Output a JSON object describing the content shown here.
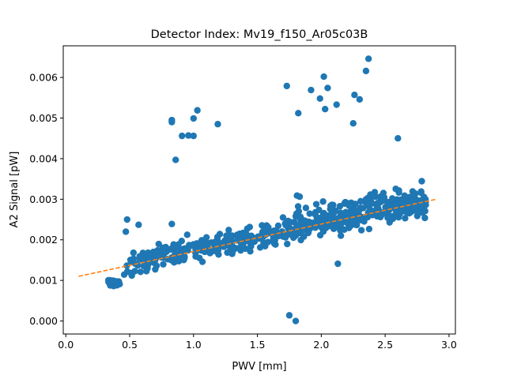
{
  "chart_data": {
    "type": "scatter",
    "title": "Detector Index: Mv19_f150_Ar05c03B",
    "xlabel": "PWV [mm]",
    "ylabel": "A2 Signal [pW]",
    "xlim": [
      -0.02,
      3.05
    ],
    "ylim": [
      -0.00032,
      0.00678
    ],
    "xticks": [
      0.0,
      0.5,
      1.0,
      1.5,
      2.0,
      2.5,
      3.0
    ],
    "xtick_labels": [
      "0.0",
      "0.5",
      "1.0",
      "1.5",
      "2.0",
      "2.5",
      "3.0"
    ],
    "yticks": [
      0.0,
      0.001,
      0.002,
      0.003,
      0.004,
      0.005,
      0.006
    ],
    "ytick_labels": [
      "0.000",
      "0.001",
      "0.002",
      "0.003",
      "0.004",
      "0.005",
      "0.006"
    ],
    "colors": {
      "points": "#1f77b4",
      "fit": "#ff7f0e"
    },
    "fit_line": {
      "name": "linear fit",
      "style": "dashed",
      "x": [
        0.1,
        2.9
      ],
      "y": [
        0.0011,
        0.003
      ]
    },
    "main_band": {
      "description": "dense cluster following y ≈ 0.00106 + 0.00069·x with spread",
      "x_range": [
        0.33,
        2.82
      ]
    },
    "outliers": [
      [
        0.47,
        0.0022
      ],
      [
        0.48,
        0.0025
      ],
      [
        0.57,
        0.00237
      ],
      [
        0.83,
        0.00239
      ],
      [
        0.83,
        0.0049
      ],
      [
        0.83,
        0.00495
      ],
      [
        0.86,
        0.00397
      ],
      [
        0.91,
        0.00456
      ],
      [
        0.96,
        0.00457
      ],
      [
        1.0,
        0.00456
      ],
      [
        1.0,
        0.00499
      ],
      [
        1.03,
        0.00519
      ],
      [
        1.19,
        0.00485
      ],
      [
        1.73,
        0.00579
      ],
      [
        1.75,
        0.00014
      ],
      [
        1.8,
        0.0
      ],
      [
        1.82,
        0.00512
      ],
      [
        1.81,
        0.00309
      ],
      [
        1.92,
        0.00569
      ],
      [
        1.99,
        0.00548
      ],
      [
        2.02,
        0.00602
      ],
      [
        2.03,
        0.00522
      ],
      [
        2.05,
        0.00574
      ],
      [
        2.12,
        0.00533
      ],
      [
        2.13,
        0.00141
      ],
      [
        2.25,
        0.00487
      ],
      [
        2.26,
        0.00557
      ],
      [
        2.3,
        0.00546
      ],
      [
        2.35,
        0.00616
      ],
      [
        2.37,
        0.00646
      ],
      [
        2.6,
        0.0045
      ]
    ]
  }
}
